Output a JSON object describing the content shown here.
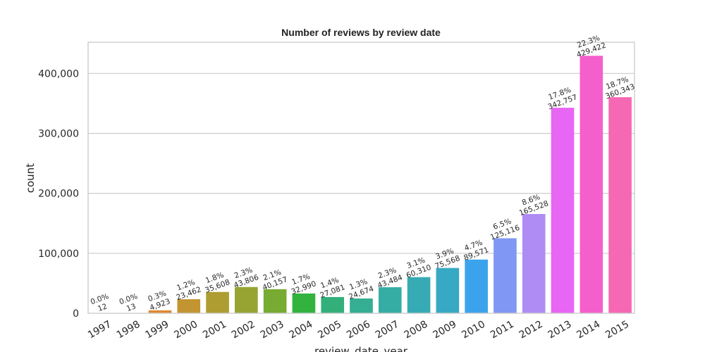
{
  "chart_data": {
    "type": "bar",
    "title": "Number of reviews by review date",
    "xlabel": "review_date_year",
    "ylabel": "count",
    "ylim": [
      0,
      452000
    ],
    "yticks": [
      0,
      100000,
      200000,
      300000,
      400000
    ],
    "ytick_labels": [
      "0",
      "100,000",
      "200,000",
      "300,000",
      "400,000"
    ],
    "grid": "horizontal",
    "categories": [
      "1997",
      "1998",
      "1999",
      "2000",
      "2001",
      "2002",
      "2003",
      "2004",
      "2005",
      "2006",
      "2007",
      "2008",
      "2009",
      "2010",
      "2011",
      "2012",
      "2013",
      "2014",
      "2015"
    ],
    "values": [
      12,
      13,
      4923,
      23462,
      35608,
      43806,
      40157,
      32990,
      27081,
      24674,
      43484,
      60310,
      75568,
      89571,
      125116,
      165528,
      342757,
      429422,
      360343
    ],
    "value_labels": [
      "12",
      "13",
      "4,923",
      "23,462",
      "35,608",
      "43,806",
      "40,157",
      "32,990",
      "27,081",
      "24,674",
      "43,484",
      "60,310",
      "75,568",
      "89,571",
      "125,116",
      "165,528",
      "342,757",
      "429,422",
      "360,343"
    ],
    "percent_labels": [
      "0.0%",
      "0.0%",
      "0.3%",
      "1.2%",
      "1.8%",
      "2.3%",
      "2.1%",
      "1.7%",
      "1.4%",
      "1.3%",
      "2.3%",
      "3.1%",
      "3.9%",
      "4.7%",
      "6.5%",
      "8.6%",
      "17.8%",
      "22.3%",
      "18.7%"
    ],
    "colors": [
      "#f77189",
      "#f7754f",
      "#dc8932",
      "#c39532",
      "#ae9d31",
      "#97a431",
      "#77ab31",
      "#31b33e",
      "#33b07a",
      "#35ae93",
      "#36ada4",
      "#37abb4",
      "#38a9c5",
      "#3ba3ec",
      "#8197f4",
      "#ae8cf4",
      "#e866f4",
      "#f45fcc",
      "#f668b3"
    ]
  }
}
